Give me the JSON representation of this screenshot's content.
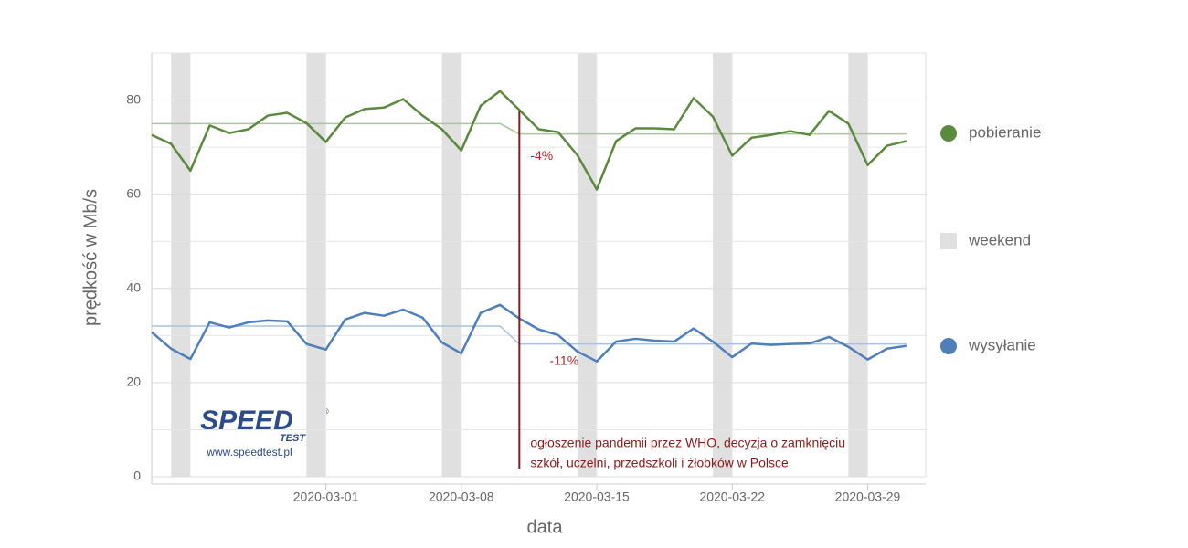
{
  "chart_data": {
    "type": "line",
    "x_label": "data",
    "y_label": "prędkość w Mb/s",
    "xlim": [
      "2020-02-21",
      "2020-04-01"
    ],
    "xticks": [
      "2020-03-01",
      "2020-03-08",
      "2020-03-15",
      "2020-03-22",
      "2020-03-29"
    ],
    "ylim": [
      0,
      90
    ],
    "yticks": [
      0,
      20,
      40,
      60,
      80
    ],
    "minor_yticks": [
      10,
      30,
      50,
      70,
      90
    ],
    "grid": true,
    "legend": "right",
    "x": [
      "2020-02-21",
      "2020-02-22",
      "2020-02-23",
      "2020-02-24",
      "2020-02-25",
      "2020-02-26",
      "2020-02-27",
      "2020-02-28",
      "2020-02-29",
      "2020-03-01",
      "2020-03-02",
      "2020-03-03",
      "2020-03-04",
      "2020-03-05",
      "2020-03-06",
      "2020-03-07",
      "2020-03-08",
      "2020-03-09",
      "2020-03-10",
      "2020-03-11",
      "2020-03-12",
      "2020-03-13",
      "2020-03-14",
      "2020-03-15",
      "2020-03-16",
      "2020-03-17",
      "2020-03-18",
      "2020-03-19",
      "2020-03-20",
      "2020-03-21",
      "2020-03-22",
      "2020-03-23",
      "2020-03-24",
      "2020-03-25",
      "2020-03-26",
      "2020-03-27",
      "2020-03-28",
      "2020-03-29",
      "2020-03-30",
      "2020-03-31"
    ],
    "series": [
      {
        "name": "pobieranie",
        "color": "#5a8a3e",
        "values": [
          72.6,
          70.7,
          65.0,
          74.6,
          73.0,
          73.8,
          76.7,
          77.3,
          75.1,
          71.1,
          76.3,
          78.1,
          78.4,
          80.2,
          76.7,
          73.8,
          69.3,
          78.8,
          81.9,
          77.9,
          73.8,
          73.2,
          68.3,
          61.0,
          71.3,
          74.0,
          74.0,
          73.8,
          80.4,
          76.5,
          68.2,
          72.0,
          72.6,
          73.4,
          72.6,
          77.7,
          75.0,
          66.2,
          70.3,
          71.3
        ]
      },
      {
        "name": "wysyłanie",
        "color": "#4f7fba",
        "values": [
          30.7,
          27.2,
          25.0,
          32.8,
          31.7,
          32.8,
          33.2,
          33.0,
          28.2,
          27.0,
          33.4,
          34.8,
          34.2,
          35.5,
          33.8,
          28.5,
          26.2,
          34.8,
          36.5,
          33.6,
          31.3,
          30.1,
          26.6,
          24.5,
          28.7,
          29.3,
          28.9,
          28.7,
          31.5,
          28.7,
          25.4,
          28.3,
          28.0,
          28.2,
          28.3,
          29.7,
          27.6,
          24.9,
          27.2,
          27.8
        ]
      }
    ],
    "averages": [
      {
        "color": "#a9c79a",
        "values": [
          75,
          75,
          75,
          75,
          75,
          75,
          75,
          75,
          75,
          75,
          75,
          75,
          75,
          75,
          75,
          75,
          75,
          75,
          75,
          72.8,
          72.8,
          72.8,
          72.8,
          72.8,
          72.8,
          72.8,
          72.8,
          72.8,
          72.8,
          72.8,
          72.8,
          72.8,
          72.8,
          72.8,
          72.8,
          72.8,
          72.8,
          72.8,
          72.8,
          72.8
        ]
      },
      {
        "color": "#a9c2e0",
        "values": [
          32,
          32,
          32,
          32,
          32,
          32,
          32,
          32,
          32,
          32,
          32,
          32,
          32,
          32,
          32,
          32,
          32,
          32,
          32,
          28.2,
          28.2,
          28.2,
          28.2,
          28.2,
          28.2,
          28.2,
          28.2,
          28.2,
          28.2,
          28.2,
          28.2,
          28.2,
          28.2,
          28.2,
          28.2,
          28.2,
          28.2,
          28.2,
          28.2,
          28.2
        ]
      }
    ],
    "weekend": {
      "name": "weekend",
      "color": "#e0e0e0",
      "ranges": [
        [
          "2020-02-22",
          "2020-02-23"
        ],
        [
          "2020-02-29",
          "2020-03-01"
        ],
        [
          "2020-03-07",
          "2020-03-08"
        ],
        [
          "2020-03-14",
          "2020-03-15"
        ],
        [
          "2020-03-21",
          "2020-03-22"
        ],
        [
          "2020-03-28",
          "2020-03-29"
        ]
      ]
    },
    "event": {
      "x": "2020-03-11",
      "y_top": 77.7,
      "y_bottom": 1.7,
      "color": "#8b1a1a",
      "lines": [
        "ogłoszenie pandemii przez WHO, decyzja o zamknięciu",
        "szkół, uczelni, przedszkoli i żłobków w Polsce"
      ]
    },
    "change_labels": [
      {
        "text": "-4%",
        "x": "2020-03-11",
        "y": 68
      },
      {
        "text": "-11%",
        "x": "2020-03-12",
        "y": 24.5
      }
    ],
    "logo": {
      "text": "SPEED",
      "subtext": "TEST",
      "mark": "®",
      "url": "www.speedtest.pl"
    }
  }
}
